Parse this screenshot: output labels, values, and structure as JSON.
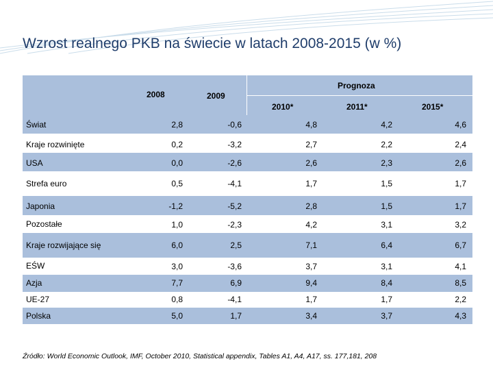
{
  "title": "Wzrost realnego PKB na świecie w latach 2008-2015 (w %)",
  "header": {
    "col_2008": "2008",
    "col_2009": "2009",
    "forecast": "Prognoza",
    "col_2010": "2010*",
    "col_2011": "2011*",
    "col_2015": "2015*"
  },
  "rows": [
    {
      "label": "Świat",
      "values": [
        "2,8",
        "-0,6",
        "4,8",
        "4,2",
        "4,6"
      ]
    },
    {
      "label": "Kraje rozwinięte",
      "values": [
        "0,2",
        "-3,2",
        "2,7",
        "2,2",
        "2,4"
      ]
    },
    {
      "label": "USA",
      "values": [
        "0,0",
        "-2,6",
        "2,6",
        "2,3",
        "2,6"
      ]
    },
    {
      "label": "Strefa euro",
      "values": [
        "0,5",
        "-4,1",
        "1,7",
        "1,5",
        "1,7"
      ]
    },
    {
      "label": "Japonia",
      "values": [
        "-1,2",
        "-5,2",
        "2,8",
        "1,5",
        "1,7"
      ]
    },
    {
      "label": "Pozostałe",
      "values": [
        "1,0",
        "-2,3",
        "4,2",
        "3,1",
        "3,2"
      ]
    },
    {
      "label": "Kraje rozwijające się",
      "values": [
        "6,0",
        "2,5",
        "7,1",
        "6,4",
        "6,7"
      ]
    },
    {
      "label": "EŚW",
      "values": [
        "3,0",
        "-3,6",
        "3,7",
        "3,1",
        "4,1"
      ]
    },
    {
      "label": "Azja",
      "values": [
        "7,7",
        "6,9",
        "9,4",
        "8,4",
        "8,5"
      ]
    },
    {
      "label": "UE-27",
      "values": [
        "0,8",
        "-4,1",
        "1,7",
        "1,7",
        "2,2"
      ]
    },
    {
      "label": "Polska",
      "values": [
        "5,0",
        "1,7",
        "3,4",
        "3,7",
        "4,3"
      ]
    }
  ],
  "source": "Źródło: World Economic Outlook, IMF, October 2010, Statistical appendix, Tables A1, A4, A17, ss. 177,181, 208",
  "colors": {
    "header_fill": "#aabfdc",
    "title": "#1f3d6b"
  }
}
